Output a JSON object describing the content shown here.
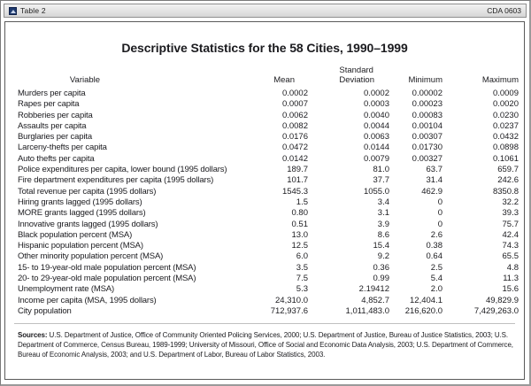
{
  "window": {
    "bar_title": "Table 2",
    "bar_code": "CDA 0603"
  },
  "table": {
    "title": "Descriptive Statistics for the 58 Cities, 1990–1999",
    "headers": {
      "variable": "Variable",
      "mean": "Mean",
      "sd_line1": "Standard",
      "sd_line2": "Deviation",
      "minimum": "Minimum",
      "maximum": "Maximum"
    },
    "rows": [
      {
        "label": "Murders per capita",
        "mean": "0.0002",
        "sd": "0.0002",
        "min": "0.00002",
        "max": "0.0009"
      },
      {
        "label": "Rapes per capita",
        "mean": "0.0007",
        "sd": "0.0003",
        "min": "0.00023",
        "max": "0.0020"
      },
      {
        "label": "Robberies per capita",
        "mean": "0.0062",
        "sd": "0.0040",
        "min": "0.00083",
        "max": "0.0230"
      },
      {
        "label": "Assaults per capita",
        "mean": "0.0082",
        "sd": "0.0044",
        "min": "0.00104",
        "max": "0.0237"
      },
      {
        "label": "Burglaries per capita",
        "mean": "0.0176",
        "sd": "0.0063",
        "min": "0.00307",
        "max": "0.0432"
      },
      {
        "label": "Larceny-thefts per capita",
        "mean": "0.0472",
        "sd": "0.0144",
        "min": "0.01730",
        "max": "0.0898"
      },
      {
        "label": "Auto thefts per capita",
        "mean": "0.0142",
        "sd": "0.0079",
        "min": "0.00327",
        "max": "0.1061"
      },
      {
        "label": "Police expenditures per capita, lower bound (1995 dollars)",
        "mean": "189.7",
        "sd": "81.0",
        "min": "63.7",
        "max": "659.7"
      },
      {
        "label": "Fire department expenditures per capita (1995 dollars)",
        "mean": "101.7",
        "sd": "37.7",
        "min": "31.4",
        "max": "242.6"
      },
      {
        "label": "Total revenue per capita (1995 dollars)",
        "mean": "1545.3",
        "sd": "1055.0",
        "min": "462.9",
        "max": "8350.8"
      },
      {
        "label": "Hiring grants lagged (1995 dollars)",
        "mean": "1.5",
        "sd": "3.4",
        "min": "0",
        "max": "32.2"
      },
      {
        "label": "MORE grants lagged (1995 dollars)",
        "mean": "0.80",
        "sd": "3.1",
        "min": "0",
        "max": "39.3"
      },
      {
        "label": "Innovative grants lagged (1995 dollars)",
        "mean": "0.51",
        "sd": "3.9",
        "min": "0",
        "max": "75.7"
      },
      {
        "label": "Black population percent (MSA)",
        "mean": "13.0",
        "sd": "8.6",
        "min": "2.6",
        "max": "42.4"
      },
      {
        "label": "Hispanic population percent (MSA)",
        "mean": "12.5",
        "sd": "15.4",
        "min": "0.38",
        "max": "74.3"
      },
      {
        "label": "Other minority population percent (MSA)",
        "mean": "6.0",
        "sd": "9.2",
        "min": "0.64",
        "max": "65.5"
      },
      {
        "label": "15- to 19-year-old male population percent (MSA)",
        "mean": "3.5",
        "sd": "0.36",
        "min": "2.5",
        "max": "4.8"
      },
      {
        "label": "20- to 29-year-old male population percent (MSA)",
        "mean": "7.5",
        "sd": "0.99",
        "min": "5.4",
        "max": "11.3"
      },
      {
        "label": "Unemployment rate (MSA)",
        "mean": "5.3",
        "sd": "2.19412",
        "min": "2.0",
        "max": "15.6"
      },
      {
        "label": "Income per capita (MSA, 1995 dollars)",
        "mean": "24,310.0",
        "sd": "4,852.7",
        "min": "12,404.1",
        "max": "49,829.9"
      },
      {
        "label": "City population",
        "mean": "712,937.6",
        "sd": "1,011,483.0",
        "min": "216,620.0",
        "max": "7,429,263.0"
      }
    ]
  },
  "sources": {
    "label": "Sources:",
    "text": " U.S. Department of Justice, Office of Community Oriented Policing Services, 2000; U.S. Department of Justice, Bureau of Justice Statistics, 2003; U.S. Department of Commerce, Census Bureau, 1989-1999; University of Missouri, Office of Social and Economic Data Analysis, 2003; U.S. Department of Commerce, Bureau of Economic Analysis, 2003; and U.S. Department of Labor, Bureau of Labor Statistics, 2003."
  },
  "chart_data": {
    "type": "table",
    "title": "Descriptive Statistics for the 58 Cities, 1990-1999",
    "columns": [
      "Variable",
      "Mean",
      "Standard Deviation",
      "Minimum",
      "Maximum"
    ]
  }
}
